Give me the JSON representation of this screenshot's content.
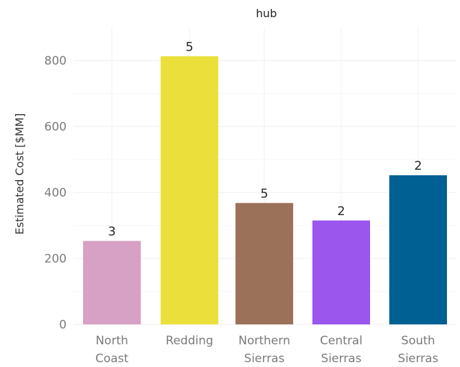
{
  "chart_data": {
    "type": "bar",
    "title": "hub",
    "xlabel": "",
    "ylabel": "Estimated Cost [$MM]",
    "ylim": [
      0,
      880
    ],
    "yticks": [
      0,
      200,
      400,
      600,
      800
    ],
    "grid": true,
    "categories": [
      {
        "line1": "North",
        "line2": "Coast"
      },
      {
        "line1": "Redding",
        "line2": ""
      },
      {
        "line1": "Northern",
        "line2": "Sierras"
      },
      {
        "line1": "Central",
        "line2": "Sierras"
      },
      {
        "line1": "South",
        "line2": "Sierras"
      }
    ],
    "values": [
      253,
      813,
      368,
      315,
      452
    ],
    "data_labels": [
      "3",
      "5",
      "5",
      "2",
      "2"
    ],
    "colors": [
      "#D6A1C4",
      "#EBE03B",
      "#9C715A",
      "#9B56EE",
      "#005F93"
    ]
  }
}
